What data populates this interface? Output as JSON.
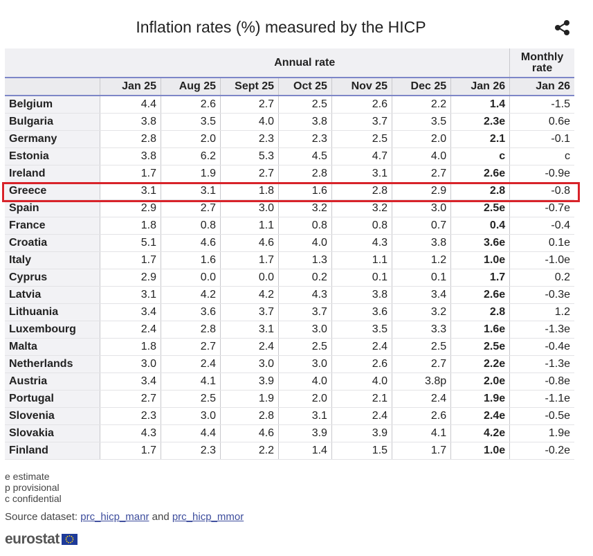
{
  "title": "Inflation rates (%) measured by the HICP",
  "header": {
    "annual_group": "Annual rate",
    "monthly_group": "Monthly rate",
    "columns": [
      "Jan 25",
      "Aug 25",
      "Sept 25",
      "Oct 25",
      "Nov 25",
      "Dec 25",
      "Jan 26",
      "Jan 26"
    ]
  },
  "chart_data": {
    "type": "table",
    "title": "Inflation rates (%) measured by the HICP",
    "column_groups": [
      {
        "name": "Annual rate",
        "columns": [
          "Jan 25",
          "Aug 25",
          "Sept 25",
          "Oct 25",
          "Nov 25",
          "Dec 25",
          "Jan 26"
        ]
      },
      {
        "name": "Monthly rate",
        "columns": [
          "Jan 26"
        ]
      }
    ],
    "rows": [
      {
        "country": "Belgium",
        "values": [
          "4.4",
          "2.6",
          "2.7",
          "2.5",
          "2.6",
          "2.2",
          "1.4",
          "-1.5"
        ]
      },
      {
        "country": "Bulgaria",
        "values": [
          "3.8",
          "3.5",
          "4.0",
          "3.8",
          "3.7",
          "3.5",
          "2.3e",
          "0.6e"
        ]
      },
      {
        "country": "Germany",
        "values": [
          "2.8",
          "2.0",
          "2.3",
          "2.3",
          "2.5",
          "2.0",
          "2.1",
          "-0.1"
        ]
      },
      {
        "country": "Estonia",
        "values": [
          "3.8",
          "6.2",
          "5.3",
          "4.5",
          "4.7",
          "4.0",
          "c",
          "c"
        ]
      },
      {
        "country": "Ireland",
        "values": [
          "1.7",
          "1.9",
          "2.7",
          "2.8",
          "3.1",
          "2.7",
          "2.6e",
          "-0.9e"
        ]
      },
      {
        "country": "Greece",
        "values": [
          "3.1",
          "3.1",
          "1.8",
          "1.6",
          "2.8",
          "2.9",
          "2.8",
          "-0.8"
        ],
        "highlighted": true
      },
      {
        "country": "Spain",
        "values": [
          "2.9",
          "2.7",
          "3.0",
          "3.2",
          "3.2",
          "3.0",
          "2.5e",
          "-0.7e"
        ]
      },
      {
        "country": "France",
        "values": [
          "1.8",
          "0.8",
          "1.1",
          "0.8",
          "0.8",
          "0.7",
          "0.4",
          "-0.4"
        ]
      },
      {
        "country": "Croatia",
        "values": [
          "5.1",
          "4.6",
          "4.6",
          "4.0",
          "4.3",
          "3.8",
          "3.6e",
          "0.1e"
        ]
      },
      {
        "country": "Italy",
        "values": [
          "1.7",
          "1.6",
          "1.7",
          "1.3",
          "1.1",
          "1.2",
          "1.0e",
          "-1.0e"
        ]
      },
      {
        "country": "Cyprus",
        "values": [
          "2.9",
          "0.0",
          "0.0",
          "0.2",
          "0.1",
          "0.1",
          "1.7",
          "0.2"
        ]
      },
      {
        "country": "Latvia",
        "values": [
          "3.1",
          "4.2",
          "4.2",
          "4.3",
          "3.8",
          "3.4",
          "2.6e",
          "-0.3e"
        ]
      },
      {
        "country": "Lithuania",
        "values": [
          "3.4",
          "3.6",
          "3.7",
          "3.7",
          "3.6",
          "3.2",
          "2.8",
          "1.2"
        ]
      },
      {
        "country": "Luxembourg",
        "values": [
          "2.4",
          "2.8",
          "3.1",
          "3.0",
          "3.5",
          "3.3",
          "1.6e",
          "-1.3e"
        ]
      },
      {
        "country": "Malta",
        "values": [
          "1.8",
          "2.7",
          "2.4",
          "2.5",
          "2.4",
          "2.5",
          "2.5e",
          "-0.4e"
        ]
      },
      {
        "country": "Netherlands",
        "values": [
          "3.0",
          "2.4",
          "3.0",
          "3.0",
          "2.6",
          "2.7",
          "2.2e",
          "-1.3e"
        ]
      },
      {
        "country": "Austria",
        "values": [
          "3.4",
          "4.1",
          "3.9",
          "4.0",
          "4.0",
          "3.8p",
          "2.0e",
          "-0.8e"
        ]
      },
      {
        "country": "Portugal",
        "values": [
          "2.7",
          "2.5",
          "1.9",
          "2.0",
          "2.1",
          "2.4",
          "1.9e",
          "-1.1e"
        ]
      },
      {
        "country": "Slovenia",
        "values": [
          "2.3",
          "3.0",
          "2.8",
          "3.1",
          "2.4",
          "2.6",
          "2.4e",
          "-0.5e"
        ]
      },
      {
        "country": "Slovakia",
        "values": [
          "4.3",
          "4.4",
          "4.6",
          "3.9",
          "3.9",
          "4.1",
          "4.2e",
          "1.9e"
        ]
      },
      {
        "country": "Finland",
        "values": [
          "1.7",
          "2.3",
          "2.2",
          "1.4",
          "1.5",
          "1.7",
          "1.0e",
          "-0.2e"
        ]
      }
    ]
  },
  "legend": [
    "e estimate",
    "p provisional",
    "c confidential"
  ],
  "source": {
    "prefix": "Source dataset:",
    "link1": "prc_hicp_manr",
    "middle": "and",
    "link2": "prc_hicp_mmor"
  },
  "logo": "eurostat",
  "colors": {
    "highlight": "#d8232a",
    "header_rule": "#7d86c7",
    "link": "#3c4c9c"
  },
  "icons": {
    "share": "share-icon",
    "flag": "eu-flag-icon"
  }
}
